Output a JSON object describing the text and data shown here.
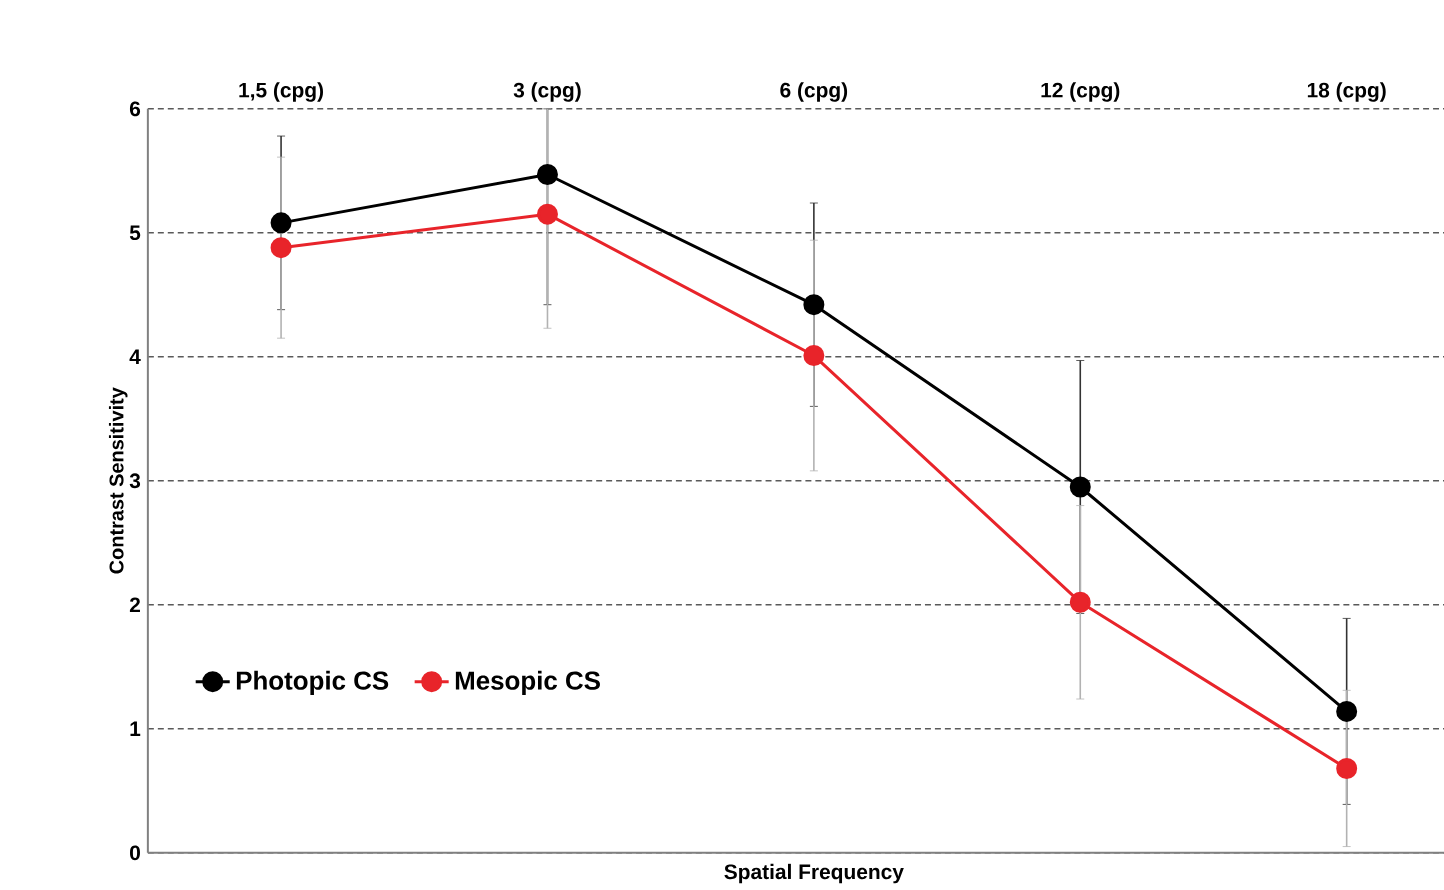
{
  "chart_data": {
    "type": "line",
    "xlabel": "Spatial Frequency",
    "ylabel": "Contrast Sensitivity",
    "categories": [
      "1,5 (cpg)",
      "3 (cpg)",
      "6 (cpg)",
      "12 (cpg)",
      "18 (cpg)"
    ],
    "series": [
      {
        "name": "Photopic CS",
        "color": "#000000",
        "values": [
          5.08,
          5.47,
          4.42,
          2.95,
          1.14
        ],
        "errors": [
          0.7,
          [
            4.42,
            6
          ],
          0.82,
          1.02,
          0.75
        ]
      },
      {
        "name": "Mesopic CS",
        "color": "#e8242a",
        "values": [
          4.88,
          5.15,
          4.01,
          2.02,
          0.68
        ],
        "errors": [
          0.73,
          [
            4.23,
            6
          ],
          0.93,
          0.78,
          0.63
        ]
      }
    ],
    "ylim": [
      0,
      6
    ],
    "yticks": [
      0,
      1,
      2,
      3,
      4,
      5,
      6
    ],
    "grid": "y",
    "legend": "bottom left",
    "marker": "circle",
    "line_style": "solid"
  }
}
